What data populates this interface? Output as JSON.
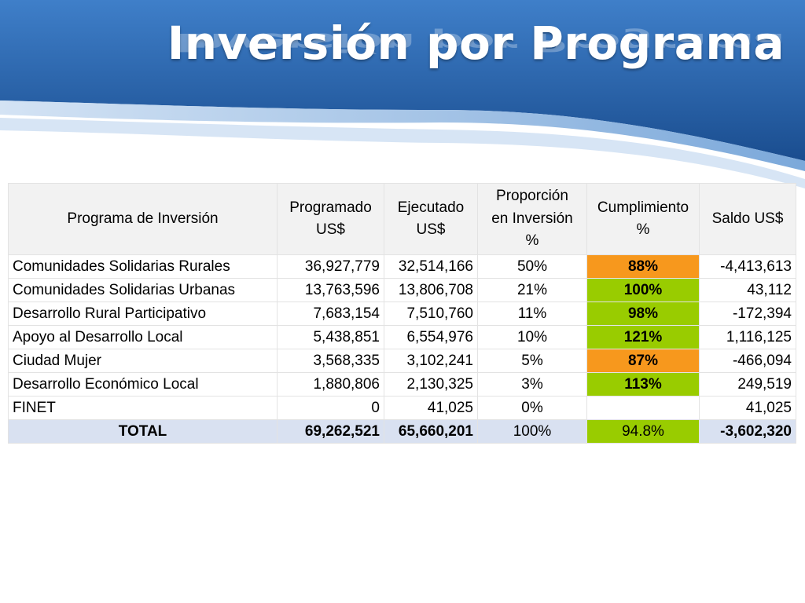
{
  "slide": {
    "title": "Inversión por Programa"
  },
  "table": {
    "headers": {
      "programa": "Programa de Inversión",
      "programado_1": "Programado",
      "programado_2": "US$",
      "ejecutado_1": "Ejecutado",
      "ejecutado_2": "US$",
      "proporcion_1": "Proporción",
      "proporcion_2": "en Inversión",
      "proporcion_3": "%",
      "cumplimiento_1": "Cumplimiento",
      "cumplimiento_2": "%",
      "saldo": "Saldo US$"
    },
    "rows": [
      {
        "programa": "Comunidades Solidarias Rurales",
        "programado": "36,927,779",
        "ejecutado": "32,514,166",
        "proporcion": "50%",
        "cumplimiento": "88%",
        "status": "orange",
        "saldo": "-4,413,613"
      },
      {
        "programa": "Comunidades Solidarias Urbanas",
        "programado": "13,763,596",
        "ejecutado": "13,806,708",
        "proporcion": "21%",
        "cumplimiento": "100%",
        "status": "green",
        "saldo": "43,112"
      },
      {
        "programa": "Desarrollo Rural Participativo",
        "programado": "7,683,154",
        "ejecutado": "7,510,760",
        "proporcion": "11%",
        "cumplimiento": "98%",
        "status": "green",
        "saldo": "-172,394"
      },
      {
        "programa": "Apoyo al Desarrollo Local",
        "programado": "5,438,851",
        "ejecutado": "6,554,976",
        "proporcion": "10%",
        "cumplimiento": "121%",
        "status": "green",
        "saldo": "1,116,125"
      },
      {
        "programa": "Ciudad Mujer",
        "programado": "3,568,335",
        "ejecutado": "3,102,241",
        "proporcion": "5%",
        "cumplimiento": "87%",
        "status": "orange",
        "saldo": "-466,094"
      },
      {
        "programa": "Desarrollo Económico Local",
        "programado": "1,880,806",
        "ejecutado": "2,130,325",
        "proporcion": "3%",
        "cumplimiento": "113%",
        "status": "green",
        "saldo": "249,519"
      },
      {
        "programa": "FINET",
        "programado": "0",
        "ejecutado": "41,025",
        "proporcion": "0%",
        "cumplimiento": "",
        "status": "none",
        "saldo": "41,025"
      }
    ],
    "total": {
      "label": "TOTAL",
      "programado": "69,262,521",
      "ejecutado": "65,660,201",
      "proporcion": "100%",
      "cumplimiento": "94.8%",
      "saldo": "-3,602,320"
    }
  },
  "colors": {
    "banner_dark": "#1d4f91",
    "banner_mid": "#3a78c2",
    "status_orange": "#f7981d",
    "status_green": "#99cc00",
    "header_bg": "#f2f2f2",
    "total_bg": "#d9e1f1"
  }
}
